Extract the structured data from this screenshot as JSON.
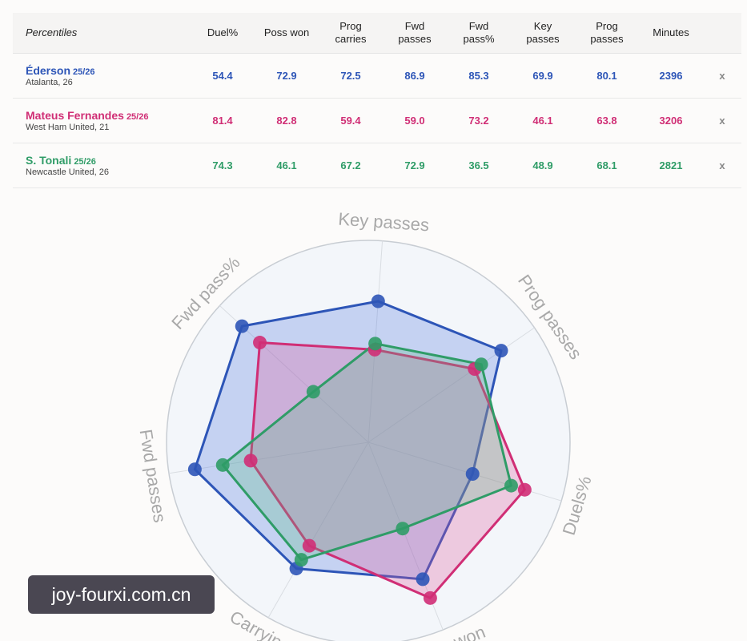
{
  "table": {
    "header_first": "Percentiles",
    "columns": [
      {
        "line1": "Duel%",
        "line2": ""
      },
      {
        "line1": "Poss won",
        "line2": ""
      },
      {
        "line1": "Prog",
        "line2": "carries"
      },
      {
        "line1": "Fwd",
        "line2": "passes"
      },
      {
        "line1": "Fwd",
        "line2": "pass%"
      },
      {
        "line1": "Key",
        "line2": "passes"
      },
      {
        "line1": "Prog",
        "line2": "passes"
      },
      {
        "line1": "Minutes",
        "line2": ""
      }
    ],
    "remove_label": "x"
  },
  "players": [
    {
      "name": "Éderson",
      "season": "25/26",
      "club": "Atalanta, 26",
      "color": "#2d55b7",
      "values": [
        "54.4",
        "72.9",
        "72.5",
        "86.9",
        "85.3",
        "69.9",
        "80.1",
        "2396"
      ]
    },
    {
      "name": "Mateus Fernandes",
      "season": "25/26",
      "club": "West Ham United, 21",
      "color": "#d02e75",
      "values": [
        "81.4",
        "82.8",
        "59.4",
        "59.0",
        "73.2",
        "46.1",
        "63.8",
        "3206"
      ]
    },
    {
      "name": "S. Tonali",
      "season": "25/26",
      "club": "Newcastle United, 26",
      "color": "#2f9c67",
      "values": [
        "74.3",
        "46.1",
        "67.2",
        "72.9",
        "36.5",
        "48.9",
        "68.1",
        "2821"
      ]
    }
  ],
  "chart_data": {
    "type": "radar",
    "axes": [
      "Key passes",
      "Prog passes",
      "Duels%",
      "Poss won",
      "Carrying",
      "Fwd passes",
      "Fwd pass%"
    ],
    "range": [
      0,
      100
    ],
    "series": [
      {
        "name": "Éderson",
        "color": "#2d55b7",
        "fill": "#4f77e0",
        "values": [
          70,
          80,
          54,
          73,
          72,
          87,
          85
        ]
      },
      {
        "name": "Mateus Fernandes",
        "color": "#d02e75",
        "fill": "#e0559a",
        "values": [
          46,
          64,
          81,
          83,
          59,
          59,
          73
        ]
      },
      {
        "name": "S. Tonali",
        "color": "#2f9c67",
        "fill": "#5aba8a",
        "values": [
          49,
          68,
          74,
          46,
          67,
          73,
          37
        ]
      }
    ]
  },
  "watermark": "joy-fourxi.com.cn"
}
